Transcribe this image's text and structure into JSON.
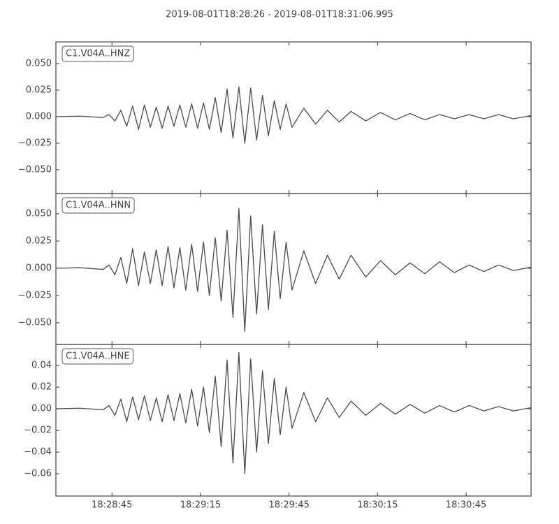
{
  "chart_data": [
    {
      "type": "line",
      "title": "2019-08-01T18:28:26  -  2019-08-01T18:31:06.995",
      "x": [
        0,
        8,
        16,
        18,
        20,
        22,
        24,
        26,
        28,
        30,
        32,
        34,
        36,
        38,
        40,
        42,
        44,
        46,
        48,
        50,
        52,
        54,
        56,
        58,
        60,
        62,
        64,
        66,
        68,
        70,
        72,
        74,
        76,
        78,
        80,
        84,
        88,
        92,
        96,
        100,
        105,
        110,
        115,
        120,
        125,
        130,
        135,
        140,
        145,
        150,
        155,
        160.995
      ],
      "series": [
        {
          "name": "C1.V04A..HNZ",
          "color": "#4a4a4a",
          "values": [
            0,
            0.0005,
            -0.0008,
            0.002,
            -0.004,
            0.006,
            -0.009,
            0.01,
            -0.012,
            0.011,
            -0.01,
            0.009,
            -0.011,
            0.01,
            -0.009,
            0.011,
            -0.01,
            0.012,
            -0.011,
            0.013,
            -0.012,
            0.018,
            -0.015,
            0.026,
            -0.02,
            0.028,
            -0.025,
            0.027,
            -0.022,
            0.02,
            -0.018,
            0.015,
            -0.012,
            0.012,
            -0.01,
            0.008,
            -0.007,
            0.006,
            -0.005,
            0.005,
            -0.004,
            0.004,
            -0.003,
            0.003,
            -0.003,
            0.002,
            -0.002,
            0.002,
            -0.002,
            0.002,
            -0.002,
            0.001
          ]
        }
      ],
      "xlim": [
        0,
        160.995
      ],
      "xticks": [
        19,
        49,
        79,
        109,
        139
      ],
      "ylim": [
        -0.0724,
        0.0704
      ],
      "yticks": [
        {
          "value": -0.05,
          "label": "−0.050"
        },
        {
          "value": -0.025,
          "label": "−0.025"
        },
        {
          "value": 0,
          "label": "0.000"
        },
        {
          "value": 0.025,
          "label": "0.025"
        },
        {
          "value": 0.05,
          "label": "0.050"
        }
      ]
    },
    {
      "type": "line",
      "x": [
        0,
        8,
        16,
        18,
        20,
        22,
        24,
        26,
        28,
        30,
        32,
        34,
        36,
        38,
        40,
        42,
        44,
        46,
        48,
        50,
        52,
        54,
        56,
        58,
        60,
        62,
        64,
        66,
        68,
        70,
        72,
        74,
        76,
        78,
        80,
        84,
        88,
        92,
        96,
        100,
        105,
        110,
        115,
        120,
        125,
        130,
        135,
        140,
        145,
        150,
        155,
        160.995
      ],
      "series": [
        {
          "name": "C1.V04A..HNN",
          "color": "#4a4a4a",
          "values": [
            0,
            0.0005,
            -0.001,
            0.003,
            -0.006,
            0.01,
            -0.014,
            0.018,
            -0.016,
            0.015,
            -0.014,
            0.017,
            -0.016,
            0.02,
            -0.018,
            0.019,
            -0.02,
            0.022,
            -0.021,
            0.024,
            -0.025,
            0.028,
            -0.03,
            0.035,
            -0.045,
            0.055,
            -0.058,
            0.048,
            -0.042,
            0.04,
            -0.038,
            0.034,
            -0.028,
            0.024,
            -0.02,
            0.016,
            -0.014,
            0.012,
            -0.01,
            0.012,
            -0.008,
            0.007,
            -0.006,
            0.005,
            -0.005,
            0.006,
            -0.004,
            0.003,
            -0.003,
            0.003,
            -0.002,
            0.001
          ]
        }
      ],
      "xlim": [
        0,
        160.995
      ],
      "xticks": [
        19,
        49,
        79,
        109,
        139
      ],
      "ylim": [
        -0.0699,
        0.0686
      ],
      "yticks": [
        {
          "value": -0.05,
          "label": "−0.050"
        },
        {
          "value": -0.025,
          "label": "−0.025"
        },
        {
          "value": 0,
          "label": "0.000"
        },
        {
          "value": 0.025,
          "label": "0.025"
        },
        {
          "value": 0.05,
          "label": "0.050"
        }
      ]
    },
    {
      "type": "line",
      "x": [
        0,
        8,
        16,
        18,
        20,
        22,
        24,
        26,
        28,
        30,
        32,
        34,
        36,
        38,
        40,
        42,
        44,
        46,
        48,
        50,
        52,
        54,
        56,
        58,
        60,
        62,
        64,
        66,
        68,
        70,
        72,
        74,
        76,
        78,
        80,
        84,
        88,
        92,
        96,
        100,
        105,
        110,
        115,
        120,
        125,
        130,
        135,
        140,
        145,
        150,
        155,
        160.995
      ],
      "series": [
        {
          "name": "C1.V04A..HNE",
          "color": "#4a4a4a",
          "values": [
            0,
            0.0005,
            -0.001,
            0.003,
            -0.006,
            0.009,
            -0.012,
            0.011,
            -0.01,
            0.012,
            -0.011,
            0.01,
            -0.012,
            0.013,
            -0.011,
            0.014,
            -0.013,
            0.018,
            -0.016,
            0.02,
            -0.022,
            0.03,
            -0.035,
            0.045,
            -0.05,
            0.052,
            -0.06,
            0.046,
            -0.04,
            0.035,
            -0.032,
            0.028,
            -0.024,
            0.02,
            -0.018,
            0.015,
            -0.012,
            0.01,
            -0.008,
            0.007,
            -0.006,
            0.005,
            -0.005,
            0.004,
            -0.004,
            0.003,
            -0.003,
            0.003,
            -0.002,
            0.002,
            -0.002,
            0.001
          ]
        }
      ],
      "xlim": [
        0,
        160.995
      ],
      "xticks": [
        {
          "value": 19,
          "label": "18:28:45"
        },
        {
          "value": 49,
          "label": "18:29:15"
        },
        {
          "value": 79,
          "label": "18:29:45"
        },
        {
          "value": 109,
          "label": "18:30:15"
        },
        {
          "value": 139,
          "label": "18:30:45"
        }
      ],
      "ylim": [
        -0.0806,
        0.0594
      ],
      "yticks": [
        {
          "value": -0.06,
          "label": "−0.06"
        },
        {
          "value": -0.04,
          "label": "−0.04"
        },
        {
          "value": -0.02,
          "label": "−0.02"
        },
        {
          "value": 0,
          "label": "0.00"
        },
        {
          "value": 0.02,
          "label": "0.02"
        },
        {
          "value": 0.04,
          "label": "0.04"
        }
      ]
    }
  ]
}
